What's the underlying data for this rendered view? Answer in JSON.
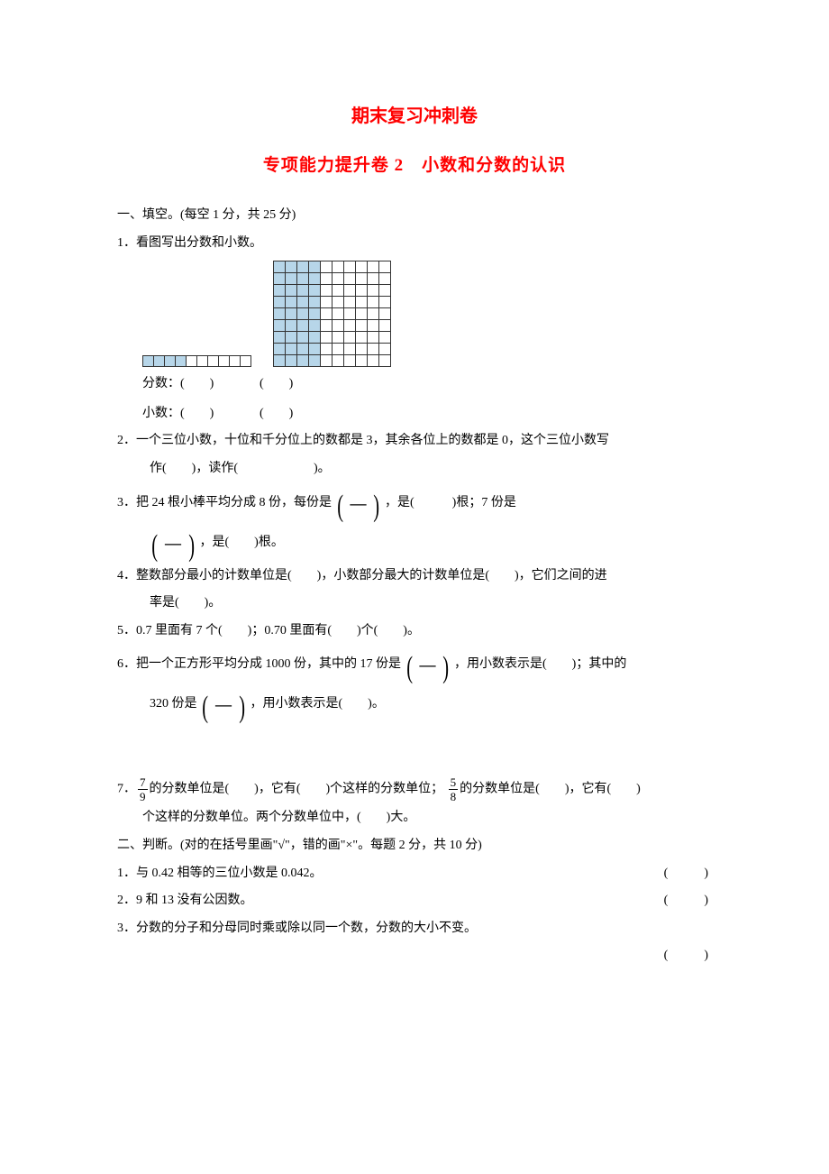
{
  "colors": {
    "title": "#ff0000",
    "text": "#000000",
    "gridFill": "#b7d6e9",
    "gridBorder": "#333333",
    "background": "#ffffff"
  },
  "title1": "期末复习冲刺卷",
  "title2": "专项能力提升卷 2　小数和分数的认识",
  "section1": {
    "heading": "一、填空。(每空 1 分，共 25 分)",
    "q1": {
      "stem": "1．看图写出分数和小数。",
      "grid1": {
        "rows": 1,
        "cols": 10,
        "fillCount": 4
      },
      "grid2": {
        "rows": 10,
        "cols": 10,
        "fillCols": 4,
        "topRowVisible": 9
      },
      "label_fraction": "分数：(　　)",
      "label_fraction2": "(　　)",
      "label_decimal": "小数：(　　)",
      "label_decimal2": "(　　)"
    },
    "q2": {
      "a": "2．一个三位小数，十位和千分位上的数都是 3，其余各位上的数都是 0，这个三位小数写",
      "b": "作(　　)，读作(　　　　　　)。"
    },
    "q3": {
      "a": "3．把 24 根小棒平均分成 8 份，每份是",
      "b": "，是(　　　)根；7 份是",
      "c": "，是(　　)根。"
    },
    "q4": {
      "a": "4．整数部分最小的计数单位是(　　)，小数部分最大的计数单位是(　　)，它们之间的进",
      "b": "率是(　　)。"
    },
    "q5": "5．0.7 里面有 7 个(　　)；0.70 里面有(　　)个(　　)。",
    "q6": {
      "a": "6．把一个正方形平均分成 1000 份，其中的 17 份是",
      "b": "，用小数表示是(　　)；其中的",
      "c": "320 份是",
      "d": "，用小数表示是(　　)。"
    },
    "q7": {
      "a": "的分数单位是(　　)，它有(　　)个这样的分数单位；",
      "b": "的分数单位是(　　)，它有(　　)",
      "c": "个这样的分数单位。两个分数单位中，(　　)大。",
      "frac1": {
        "num": "7",
        "den": "9"
      },
      "frac2": {
        "num": "5",
        "den": "8"
      }
    }
  },
  "section2": {
    "heading": "二、判断。(对的在括号里画\"√\"，错的画\"×\"。每题 2 分，共 10 分)",
    "q1": "1．与 0.42 相等的三位小数是 0.042。",
    "q2": "2．9 和 13 没有公因数。",
    "q3": "3．分数的分子和分母同时乘或除以同一个数，分数的大小不变。",
    "paren": "(　　)"
  }
}
